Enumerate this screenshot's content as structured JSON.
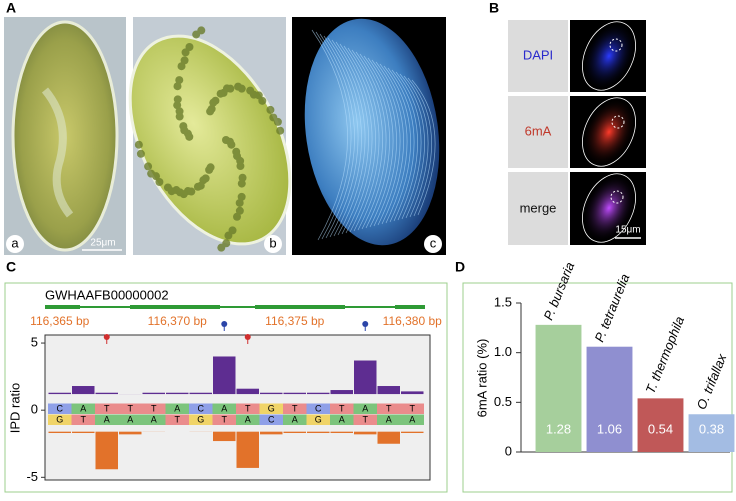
{
  "figure": {
    "A": {
      "label": "A",
      "panels": [
        "a",
        "b",
        "c"
      ],
      "scale_bar": "25μm"
    },
    "B": {
      "label": "B",
      "channels": [
        "DAPI",
        "6mA",
        "merge"
      ],
      "scale_bar": "15μm"
    },
    "C": {
      "label": "C"
    },
    "D": {
      "label": "D"
    }
  },
  "chart_data": [
    {
      "type": "diverging",
      "contig": "GWHAAFB00000002",
      "positions": [
        "116,365 bp",
        "116,370 bp",
        "116,375 bp",
        "116,380 bp"
      ],
      "ylabel": "IPD ratio",
      "categories": [
        "C",
        "A",
        "T",
        "T",
        "T",
        "A",
        "C",
        "A",
        "T",
        "G",
        "T",
        "C",
        "T",
        "A",
        "T",
        "T"
      ],
      "bottom_strand": [
        "G",
        "T",
        "A",
        "A",
        "A",
        "T",
        "G",
        "T",
        "A",
        "C",
        "A",
        "G",
        "A",
        "T",
        "A",
        "A"
      ],
      "series": [
        {
          "color": "#5e2d91",
          "values": [
            1.3,
            1.8,
            1.3,
            1.2,
            1.3,
            1.3,
            1.3,
            4.0,
            1.6,
            1.3,
            1.3,
            1.3,
            1.5,
            3.7,
            1.8,
            1.4
          ]
        },
        {
          "color": "#e2722a",
          "values": [
            -1.7,
            -1.7,
            -4.4,
            -1.8,
            -1.6,
            -1.4,
            -1.6,
            -2.3,
            -4.3,
            -1.8,
            -1.7,
            -1.7,
            -1.7,
            -1.8,
            -2.5,
            -1.7
          ]
        }
      ],
      "ylim": [
        -5.2,
        5.6
      ],
      "yticks": [
        5,
        0,
        -5
      ]
    },
    {
      "type": "bar",
      "ylabel": "6mA ratio (%)",
      "categories": [
        "P. bursaria",
        "P. tetraurelia",
        "T. thermophila",
        "O. trifallax"
      ],
      "values": [
        1.28,
        1.06,
        0.54,
        0.38
      ],
      "colors": [
        "#a6cf9c",
        "#8f8fd0",
        "#c05858",
        "#a3bce3"
      ],
      "ylim": [
        0,
        1.5
      ],
      "yticks": [
        0,
        0.5,
        {
          "value": 1,
          "label": "1.0"
        },
        1.5
      ]
    }
  ]
}
